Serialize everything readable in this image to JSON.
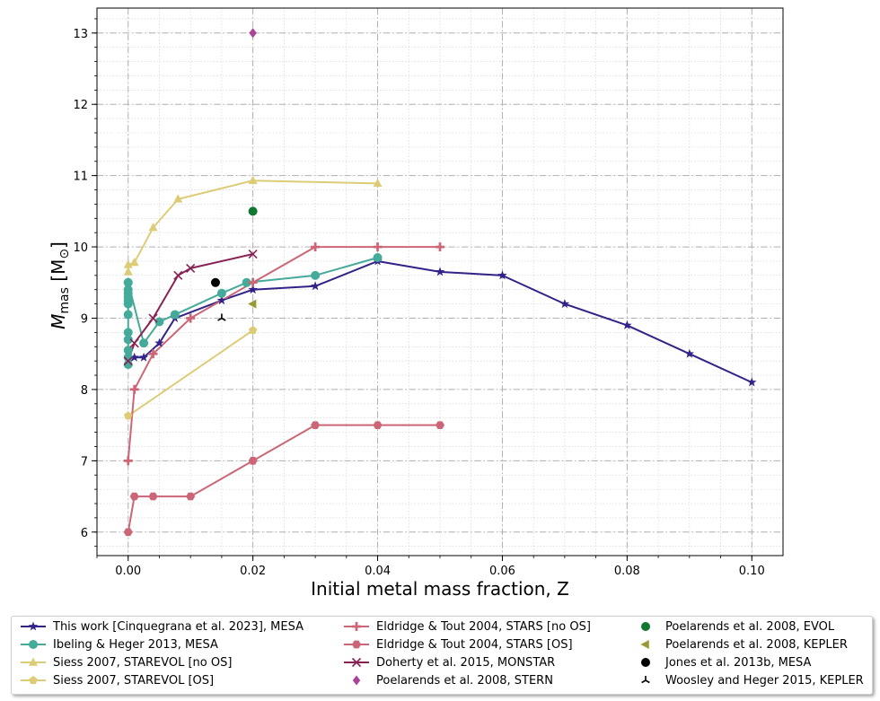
{
  "chart_data": {
    "type": "line",
    "xlabel": "Initial metal mass fraction, Z",
    "ylabel": "M_mas [M_sun]",
    "ylabel_main": "M",
    "ylabel_sub": "mas",
    "ylabel_unit": "[M",
    "ylabel_unit_close": "]",
    "xlim": [
      -0.005,
      0.105
    ],
    "ylim": [
      5.67,
      13.35
    ],
    "xticks": [
      0.0,
      0.02,
      0.04,
      0.06,
      0.08,
      0.1
    ],
    "xtick_labels": [
      "0.00",
      "0.02",
      "0.04",
      "0.06",
      "0.08",
      "0.10"
    ],
    "yticks": [
      6,
      7,
      8,
      9,
      10,
      11,
      12,
      13
    ],
    "ytick_labels": [
      "6",
      "7",
      "8",
      "9",
      "10",
      "11",
      "12",
      "13"
    ],
    "grid": true,
    "legend_position": "bottom",
    "series": [
      {
        "name": "This work [Cinquegrana et al. 2023], MESA",
        "color": "#332288",
        "marker": "star",
        "line": true,
        "x": [
          0.0001,
          0.001,
          0.0025,
          0.005,
          0.0075,
          0.015,
          0.02,
          0.03,
          0.04,
          0.05,
          0.06,
          0.07,
          0.08,
          0.09,
          0.1
        ],
        "y": [
          8.4,
          8.45,
          8.45,
          8.65,
          9.0,
          9.25,
          9.4,
          9.45,
          9.8,
          9.65,
          9.6,
          9.2,
          8.9,
          8.5,
          8.1
        ]
      },
      {
        "name": "Ibeling & Heger 2013, MESA",
        "color": "#44AA99",
        "marker": "circle",
        "line": true,
        "x": [
          0.0,
          0.0,
          0.0,
          0.0,
          0.0,
          0.0,
          0.0,
          0.0,
          0.0,
          0.0,
          0.0,
          0.0,
          0.0,
          0.0025,
          0.005,
          0.0075,
          0.015,
          0.019,
          0.03,
          0.04
        ],
        "y": [
          8.35,
          8.45,
          8.55,
          8.7,
          8.8,
          9.05,
          9.2,
          9.25,
          9.3,
          9.35,
          9.4,
          9.5,
          9.5,
          8.65,
          8.95,
          9.05,
          9.35,
          9.5,
          9.6,
          9.85
        ]
      },
      {
        "name": "Siess 2007, STAREVOL [no OS]",
        "color": "#DDCC77",
        "marker": "triangle",
        "line": true,
        "x": [
          0.0,
          0.0,
          0.001,
          0.004,
          0.008,
          0.02,
          0.04
        ],
        "y": [
          9.65,
          9.75,
          9.78,
          10.27,
          10.67,
          10.93,
          10.89
        ]
      },
      {
        "name": "Siess 2007, STAREVOL [OS]",
        "color": "#DDCC77",
        "marker": "pentagon",
        "line": true,
        "x": [
          0.0,
          0.02
        ],
        "y": [
          7.63,
          8.83
        ]
      },
      {
        "name": "Eldridge & Tout 2004, STARS [no OS]",
        "color": "#CC6677",
        "marker": "plus",
        "line": true,
        "x": [
          0.0,
          0.001,
          0.004,
          0.01,
          0.02,
          0.03,
          0.04,
          0.05
        ],
        "y": [
          7.0,
          8.0,
          8.5,
          9.0,
          9.5,
          10.0,
          10.0,
          10.0
        ]
      },
      {
        "name": "Eldridge & Tout 2004, STARS [OS]",
        "color": "#CC6677",
        "marker": "hexagon",
        "line": true,
        "x": [
          0.0,
          0.001,
          0.004,
          0.01,
          0.02,
          0.03,
          0.04,
          0.05
        ],
        "y": [
          6.0,
          6.5,
          6.5,
          6.5,
          7.0,
          7.5,
          7.5,
          7.5
        ]
      },
      {
        "name": "Doherty et al. 2015, MONSTAR",
        "color": "#882255",
        "marker": "x",
        "line": true,
        "x": [
          0.0,
          0.001,
          0.004,
          0.008,
          0.01,
          0.02
        ],
        "y": [
          8.4,
          8.65,
          9.0,
          9.6,
          9.7,
          9.9
        ]
      },
      {
        "name": "Poelarends et al. 2008, STERN",
        "color": "#AA4499",
        "marker": "diamond",
        "line": false,
        "x": [
          0.02
        ],
        "y": [
          13.0
        ]
      },
      {
        "name": "Poelarends et al. 2008, EVOL",
        "color": "#117733",
        "marker": "circle",
        "line": false,
        "x": [
          0.02
        ],
        "y": [
          10.5
        ]
      },
      {
        "name": "Poelarends et al. 2008, KEPLER",
        "color": "#999933",
        "marker": "lefttriangle",
        "line": false,
        "x": [
          0.02
        ],
        "y": [
          9.2
        ]
      },
      {
        "name": "Jones et al. 2013b, MESA",
        "color": "#000000",
        "marker": "circle",
        "line": false,
        "x": [
          0.014
        ],
        "y": [
          9.5
        ]
      },
      {
        "name": "Woosley and Heger 2015, KEPLER",
        "color": "#000000",
        "marker": "tri_down",
        "line": false,
        "x": [
          0.015
        ],
        "y": [
          9.0
        ]
      }
    ]
  }
}
